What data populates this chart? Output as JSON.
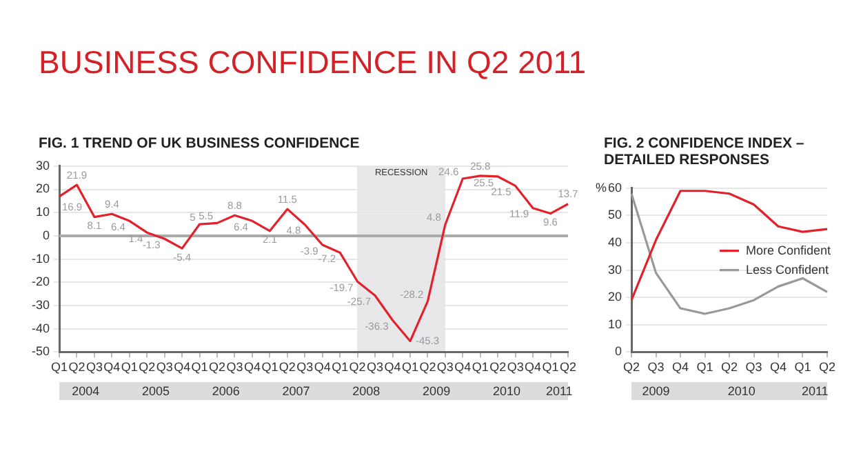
{
  "chart_data": [
    {
      "type": "line",
      "title": "BUSINESS CONFIDENCE IN Q2 2011",
      "subtitle": "FIG. 1  TREND OF UK BUSINESS CONFIDENCE",
      "categories": [
        "Q1",
        "Q2",
        "Q3",
        "Q4",
        "Q1",
        "Q2",
        "Q3",
        "Q4",
        "Q1",
        "Q2",
        "Q3",
        "Q4",
        "Q1",
        "Q2",
        "Q3",
        "Q4",
        "Q1",
        "Q2",
        "Q3",
        "Q4",
        "Q1",
        "Q2",
        "Q3",
        "Q4",
        "Q1",
        "Q2",
        "Q3",
        "Q4",
        "Q1",
        "Q2"
      ],
      "series": [
        {
          "color": "#e2212b",
          "values": [
            16.9,
            21.9,
            8.1,
            9.4,
            6.4,
            1.4,
            -1.3,
            -5.4,
            5.0,
            5.5,
            8.8,
            6.4,
            2.1,
            11.5,
            4.8,
            -3.9,
            -7.2,
            -19.7,
            -25.7,
            -36.3,
            -45.3,
            -28.2,
            4.8,
            24.6,
            25.8,
            25.5,
            21.5,
            11.9,
            9.6,
            13.7
          ]
        }
      ],
      "data_labels": true,
      "ylim": [
        -50,
        30
      ],
      "yticks": [
        -50,
        -40,
        -30,
        -20,
        -10,
        0,
        10,
        20,
        30
      ],
      "grid": "y",
      "ref_lines": [
        {
          "axis": "y",
          "value": 0,
          "color": "#aaaaaa"
        }
      ],
      "annotations": [
        "2004",
        "2005",
        "2006",
        "2007",
        "2008",
        "2009",
        "2010",
        "2011",
        "RECESSION"
      ]
    },
    {
      "type": "line",
      "title": "FIG. 2  CONFIDENCE INDEX – DETAILED RESPONSES",
      "ylabel": "%",
      "categories": [
        "Q2",
        "Q3",
        "Q4",
        "Q1",
        "Q2",
        "Q3",
        "Q4",
        "Q1",
        "Q2"
      ],
      "series": [
        {
          "name": "More Confident",
          "color": "#e2212b",
          "values": [
            19,
            41,
            59,
            59,
            58,
            54,
            46,
            44,
            45
          ]
        },
        {
          "name": "Less Confident",
          "color": "#999999",
          "values": [
            58,
            29,
            16,
            14,
            16,
            19,
            24,
            27,
            22
          ]
        }
      ],
      "legend": "right",
      "ylim": [
        0,
        60
      ],
      "yticks": [
        0,
        10,
        20,
        30,
        40,
        50,
        60
      ],
      "grid": "y",
      "annotations": [
        "2009",
        "2010",
        "2011"
      ]
    }
  ]
}
